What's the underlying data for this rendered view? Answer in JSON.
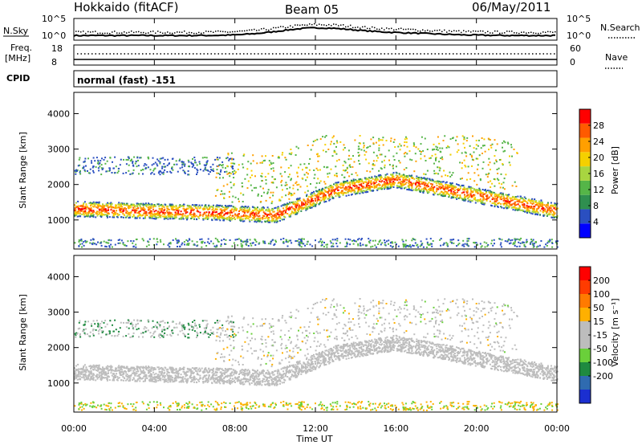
{
  "header": {
    "station": "Hokkaido (fitACF)",
    "beam": "Beam 05",
    "date": "06/May/2011"
  },
  "noise_panel": {
    "left_label": "N.Sky",
    "right_label": "N.Search",
    "left_ticks": [
      "10^5",
      "10^0"
    ],
    "right_ticks": [
      "10^5",
      "10^0"
    ]
  },
  "freq_panel": {
    "left_label_1": "Freq.",
    "left_label_2": "[MHz]",
    "right_label": "Nave",
    "left_ticks": [
      "18",
      "8"
    ],
    "right_ticks": [
      "60",
      "0"
    ]
  },
  "cpid": {
    "label": "CPID",
    "value": "normal (fast) -151"
  },
  "colors": {
    "power_scale": [
      "#0000ff",
      "#2a4fc0",
      "#2f8f4f",
      "#55b548",
      "#a8d540",
      "#f5d000",
      "#ff9f00",
      "#ff5a00",
      "#ff0000"
    ],
    "velocity_scale": [
      "#1b2fd0",
      "#2f6bb0",
      "#1f8a40",
      "#6ad03a",
      "#bdbdbd",
      "#bdbdbd",
      "#ffb000",
      "#ff7a00",
      "#ff3b00",
      "#ff0000"
    ]
  },
  "chart_data": [
    {
      "type": "heatmap",
      "name": "power",
      "ylabel": "Slant Range [km]",
      "ylim": [
        180,
        4600
      ],
      "yticks": [
        "1000",
        "2000",
        "3000",
        "4000"
      ],
      "colorbar_label": "Power [dB]",
      "colorbar_ticks": [
        "4",
        "8",
        "12",
        "16",
        "20",
        "24",
        "28"
      ],
      "colorbar_range": [
        0,
        32
      ]
    },
    {
      "type": "heatmap",
      "name": "velocity",
      "ylabel": "Slant Range [km]",
      "ylim": [
        180,
        4600
      ],
      "yticks": [
        "1000",
        "2000",
        "3000",
        "4000"
      ],
      "colorbar_label": "Velocity [m s⁻¹]",
      "colorbar_ticks": [
        "200",
        "100",
        "50",
        "15",
        "-15",
        "-50",
        "-100",
        "-200"
      ]
    }
  ],
  "x_axis": {
    "label": "Time UT",
    "ticks": [
      "00:00",
      "04:00",
      "08:00",
      "12:00",
      "16:00",
      "20:00",
      "00:00"
    ],
    "range_hours": [
      0,
      24
    ]
  }
}
